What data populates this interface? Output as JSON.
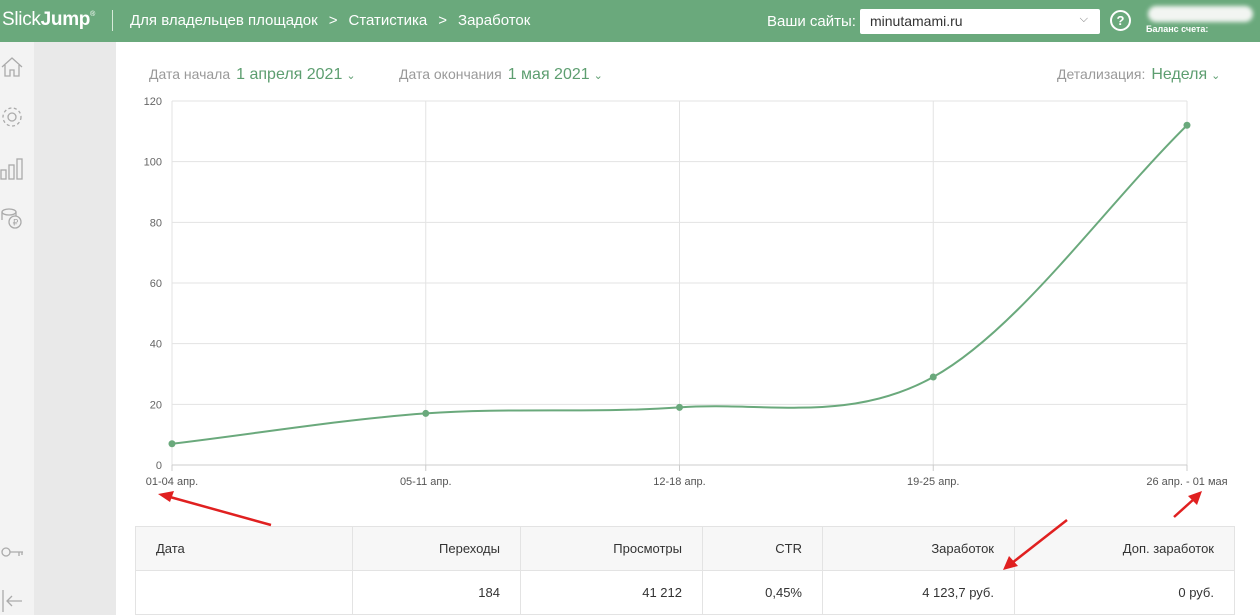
{
  "header": {
    "logo_light": "Slick",
    "logo_bold": "Jump",
    "logo_mark": "®",
    "breadcrumb": [
      "Для владельцев площадок",
      "Статистика",
      "Заработок"
    ],
    "sites_label": "Ваши сайты:",
    "site_value": "minutamami.ru",
    "help_label": "?",
    "balance_label": "Баланс счета:"
  },
  "sidebar": {
    "icons": [
      "home-icon",
      "gear-icon",
      "bar-chart-icon",
      "coins-icon",
      "key-icon",
      "logout-icon"
    ]
  },
  "filters": {
    "start_label": "Дата начала",
    "start_value": "1 апреля 2021",
    "end_label": "Дата окончания",
    "end_value": "1 мая 2021",
    "detail_label": "Детализация:",
    "detail_value": "Неделя"
  },
  "chart_data": {
    "type": "line",
    "categories": [
      "01-04 апр.",
      "05-11 апр.",
      "12-18 апр.",
      "19-25 апр.",
      "26 апр. - 01 мая"
    ],
    "values": [
      7,
      17,
      19,
      29,
      112
    ],
    "ylim": [
      0,
      120
    ],
    "yticks": [
      0,
      20,
      40,
      60,
      80,
      100,
      120
    ],
    "grid": true,
    "line_color": "#6aa97c"
  },
  "table": {
    "headers": [
      "Дата",
      "Переходы",
      "Просмотры",
      "CTR",
      "Заработок",
      "Доп. заработок"
    ],
    "row": [
      "",
      "184",
      "41 212",
      "0,45%",
      "4 123,7 руб.",
      "0 руб."
    ]
  },
  "colors": {
    "header_bg": "#6aa97c",
    "accent": "#5d9e70",
    "annotation": "#e02020"
  }
}
